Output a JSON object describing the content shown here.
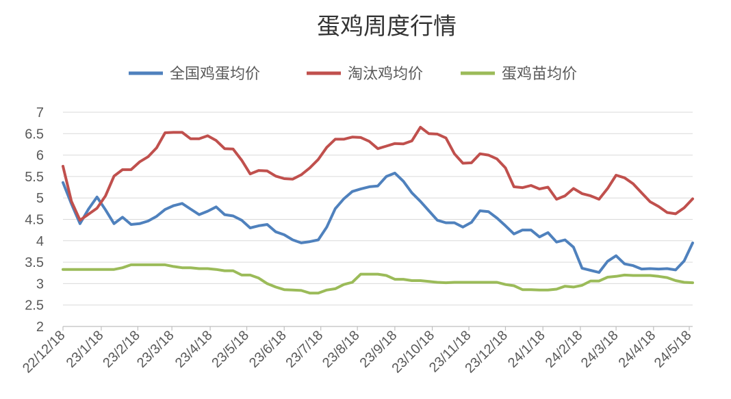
{
  "chart_data": {
    "type": "line",
    "title": "蛋鸡周度行情",
    "xlabel": "",
    "ylabel": "",
    "ylim": [
      2,
      7
    ],
    "yticks": [
      "7",
      "6.5",
      "6",
      "5.5",
      "5",
      "4.5",
      "4",
      "3.5",
      "3",
      "2.5",
      "2"
    ],
    "grid": true,
    "legend_position": "top",
    "x_tick_labels": [
      "22/12/18",
      "23/1/18",
      "23/2/18",
      "23/3/18",
      "23/4/18",
      "23/5/18",
      "23/6/18",
      "23/7/18",
      "23/8/18",
      "23/9/18",
      "23/10/18",
      "23/11/18",
      "23/12/18",
      "24/1/18",
      "24/2/18",
      "24/3/18",
      "24/4/18",
      "24/5/18"
    ],
    "x_tick_week_index": [
      0,
      4.5,
      8.8,
      12.8,
      17.3,
      21.6,
      26,
      30.3,
      34.6,
      39,
      43.4,
      47.7,
      52,
      56.4,
      60.8,
      65,
      69.4,
      73.6
    ],
    "series": [
      {
        "name": "全国鸡蛋均价",
        "color": "#4f81bd",
        "values": [
          5.36,
          4.86,
          4.4,
          4.74,
          5.02,
          4.72,
          4.4,
          4.55,
          4.38,
          4.4,
          4.46,
          4.57,
          4.73,
          4.82,
          4.87,
          4.74,
          4.61,
          4.69,
          4.79,
          4.61,
          4.58,
          4.48,
          4.3,
          4.35,
          4.38,
          4.21,
          4.14,
          4.02,
          3.95,
          3.98,
          4.02,
          4.32,
          4.75,
          4.98,
          5.15,
          5.21,
          5.26,
          5.28,
          5.5,
          5.58,
          5.39,
          5.12,
          4.92,
          4.7,
          4.48,
          4.42,
          4.42,
          4.32,
          4.43,
          4.7,
          4.68,
          4.53,
          4.35,
          4.16,
          4.25,
          4.25,
          4.09,
          4.19,
          3.97,
          4.02,
          3.85,
          3.36,
          3.31,
          3.26,
          3.52,
          3.65,
          3.46,
          3.42,
          3.34,
          3.35,
          3.34,
          3.35,
          3.32,
          3.53,
          3.95
        ]
      },
      {
        "name": "淘汰鸡均价",
        "color": "#c0504d",
        "values": [
          5.74,
          4.92,
          4.48,
          4.62,
          4.76,
          5.05,
          5.51,
          5.66,
          5.66,
          5.84,
          5.96,
          6.17,
          6.52,
          6.53,
          6.53,
          6.38,
          6.38,
          6.45,
          6.34,
          6.15,
          6.14,
          5.88,
          5.56,
          5.64,
          5.63,
          5.51,
          5.45,
          5.44,
          5.54,
          5.7,
          5.9,
          6.18,
          6.37,
          6.37,
          6.42,
          6.41,
          6.32,
          6.15,
          6.21,
          6.27,
          6.26,
          6.33,
          6.65,
          6.5,
          6.49,
          6.4,
          6.03,
          5.81,
          5.82,
          6.03,
          6.0,
          5.91,
          5.7,
          5.26,
          5.24,
          5.29,
          5.21,
          5.25,
          4.97,
          5.05,
          5.22,
          5.1,
          5.05,
          4.97,
          5.22,
          5.53,
          5.47,
          5.33,
          5.12,
          4.91,
          4.8,
          4.66,
          4.63,
          4.77,
          4.98
        ]
      },
      {
        "name": "蛋鸡苗均价",
        "color": "#9bbb59",
        "values": [
          3.33,
          3.33,
          3.33,
          3.33,
          3.33,
          3.33,
          3.33,
          3.37,
          3.44,
          3.44,
          3.44,
          3.44,
          3.44,
          3.4,
          3.37,
          3.37,
          3.35,
          3.35,
          3.33,
          3.3,
          3.3,
          3.2,
          3.2,
          3.13,
          3.0,
          2.92,
          2.86,
          2.85,
          2.84,
          2.78,
          2.78,
          2.85,
          2.88,
          2.98,
          3.03,
          3.22,
          3.22,
          3.22,
          3.19,
          3.1,
          3.1,
          3.07,
          3.07,
          3.05,
          3.03,
          3.02,
          3.03,
          3.03,
          3.03,
          3.03,
          3.03,
          3.03,
          2.98,
          2.95,
          2.86,
          2.86,
          2.85,
          2.85,
          2.87,
          2.94,
          2.92,
          2.96,
          3.06,
          3.06,
          3.15,
          3.17,
          3.2,
          3.19,
          3.19,
          3.19,
          3.17,
          3.14,
          3.07,
          3.03,
          3.02
        ]
      }
    ]
  }
}
